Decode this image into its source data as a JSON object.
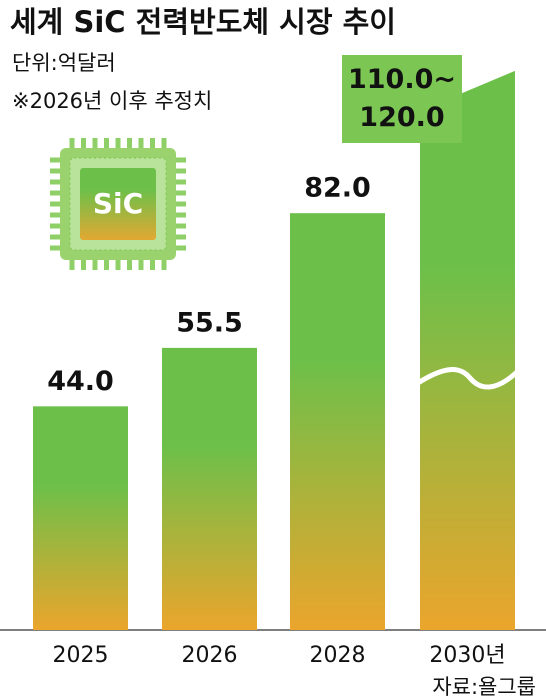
{
  "chart_data": {
    "type": "bar",
    "title": "세계 SiC 전력반도체 시장 추이",
    "subtitle": "단위:억달러",
    "note": "※2026년 이후 추정치",
    "source": "자료:욜그룹",
    "icon_label": "SiC",
    "categories": [
      "2025",
      "2026",
      "2028",
      "2030년"
    ],
    "values": [
      44.0,
      55.5,
      82.0,
      110.0
    ],
    "range_max": [
      null,
      null,
      null,
      120.0
    ],
    "value_labels": [
      "44.0",
      "55.5",
      "82.0",
      "110.0~\n120.0"
    ],
    "ylim": [
      0,
      120
    ],
    "color_top": "#6cc04a",
    "color_bottom": "#eba52c"
  }
}
